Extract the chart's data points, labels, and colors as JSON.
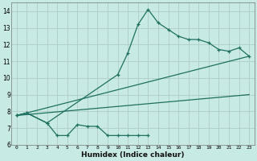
{
  "xlabel": "Humidex (Indice chaleur)",
  "background_color": "#c8eae4",
  "grid_color": "#b0ccc8",
  "line_color": "#1e7060",
  "xlim": [
    -0.5,
    23.5
  ],
  "ylim": [
    6,
    14.5
  ],
  "xticks": [
    0,
    1,
    2,
    3,
    4,
    5,
    6,
    7,
    8,
    9,
    10,
    11,
    12,
    13,
    14,
    15,
    16,
    17,
    18,
    19,
    20,
    21,
    22,
    23
  ],
  "yticks": [
    6,
    7,
    8,
    9,
    10,
    11,
    12,
    13,
    14
  ],
  "series_peaked": {
    "x": [
      0,
      1,
      3,
      10,
      11,
      12,
      13,
      14,
      15,
      16,
      17,
      18,
      19,
      20,
      21,
      22,
      23
    ],
    "y": [
      7.75,
      7.9,
      7.3,
      10.2,
      11.5,
      13.2,
      14.1,
      13.3,
      12.9,
      12.5,
      12.3,
      12.3,
      12.1,
      11.7,
      11.6,
      11.8,
      11.3
    ]
  },
  "series_wavy": {
    "x": [
      0,
      1,
      3,
      4,
      5,
      6,
      7,
      8,
      9,
      10,
      11,
      12,
      13
    ],
    "y": [
      7.75,
      7.9,
      7.3,
      6.55,
      6.55,
      7.2,
      7.1,
      7.1,
      6.55,
      6.55,
      6.55,
      6.55,
      6.55
    ]
  },
  "regression1": {
    "x": [
      0,
      23
    ],
    "y": [
      7.75,
      11.3
    ]
  },
  "regression2": {
    "x": [
      0,
      23
    ],
    "y": [
      7.75,
      9.0
    ]
  }
}
